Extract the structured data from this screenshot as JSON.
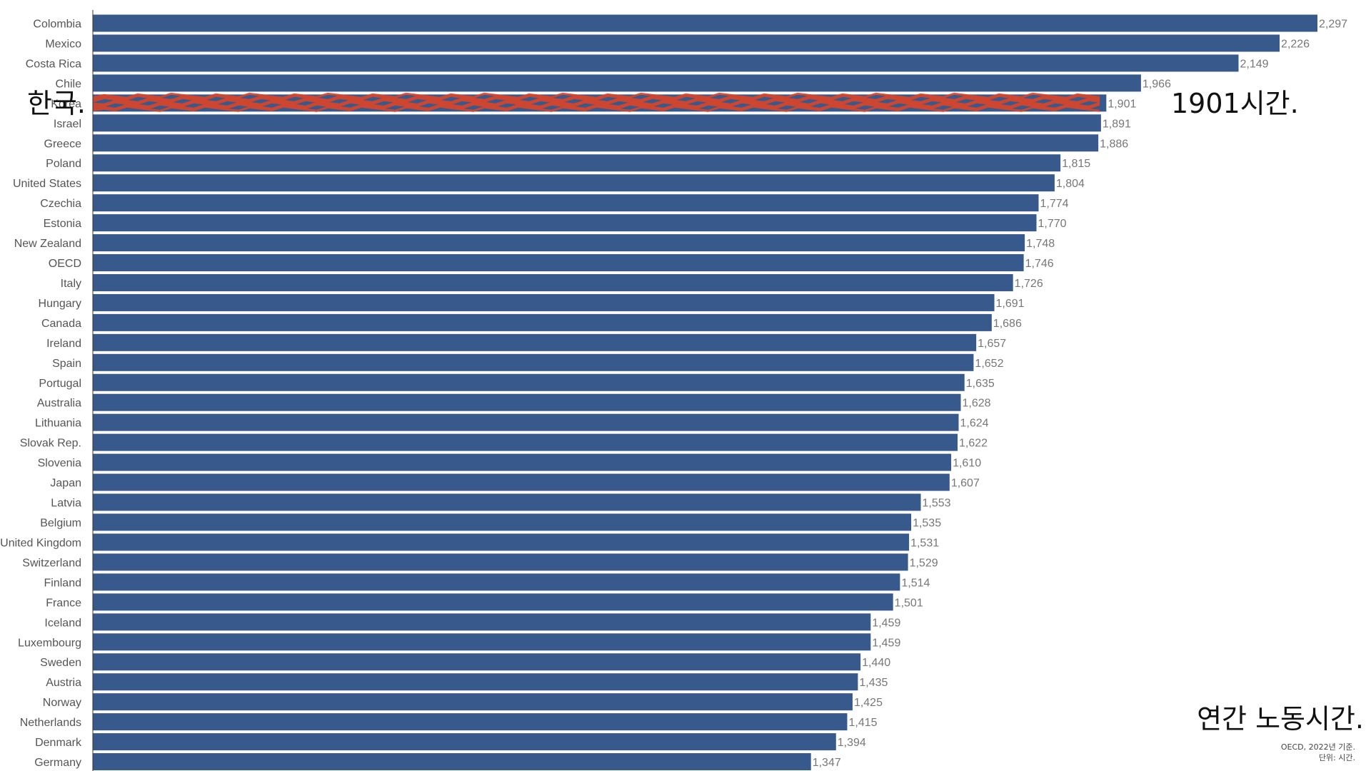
{
  "annotations": {
    "left": "한국.",
    "right": "1901시간.",
    "title": "연간 노동시간.",
    "source": "OECD, 2022년 기준.",
    "unit": "단위: 시간."
  },
  "colors": {
    "bar": "#38598b",
    "highlight": "#d6452b",
    "axis": "#333333"
  },
  "chart_data": {
    "type": "bar",
    "orientation": "horizontal",
    "highlight_category": "Korea",
    "categories": [
      "Colombia",
      "Mexico",
      "Costa Rica",
      "Chile",
      "Korea",
      "Israel",
      "Greece",
      "Poland",
      "United States",
      "Czechia",
      "Estonia",
      "New Zealand",
      "OECD",
      "Italy",
      "Hungary",
      "Canada",
      "Ireland",
      "Spain",
      "Portugal",
      "Australia",
      "Lithuania",
      "Slovak Rep.",
      "Slovenia",
      "Japan",
      "Latvia",
      "Belgium",
      "United Kingdom",
      "Switzerland",
      "Finland",
      "France",
      "Iceland",
      "Luxembourg",
      "Sweden",
      "Austria",
      "Norway",
      "Netherlands",
      "Denmark",
      "Germany"
    ],
    "values": [
      2297,
      2226,
      2149,
      1966,
      1901,
      1891,
      1886,
      1815,
      1804,
      1774,
      1770,
      1748,
      1746,
      1726,
      1691,
      1686,
      1657,
      1652,
      1635,
      1628,
      1624,
      1622,
      1610,
      1607,
      1553,
      1535,
      1531,
      1529,
      1514,
      1501,
      1459,
      1459,
      1440,
      1435,
      1425,
      1415,
      1394,
      1347
    ],
    "value_labels": [
      "2,297",
      "2,226",
      "2,149",
      "1,966",
      "1,901",
      "1,891",
      "1,886",
      "1,815",
      "1,804",
      "1,774",
      "1,770",
      "1,748",
      "1,746",
      "1,726",
      "1,691",
      "1,686",
      "1,657",
      "1,652",
      "1,635",
      "1,628",
      "1,624",
      "1,622",
      "1,610",
      "1,607",
      "1,553",
      "1,535",
      "1,531",
      "1,529",
      "1,514",
      "1,501",
      "1,459",
      "1,459",
      "1,440",
      "1,435",
      "1,425",
      "1,415",
      "1,394",
      "1,347"
    ],
    "xlim": [
      0,
      2297
    ],
    "grid": false
  }
}
